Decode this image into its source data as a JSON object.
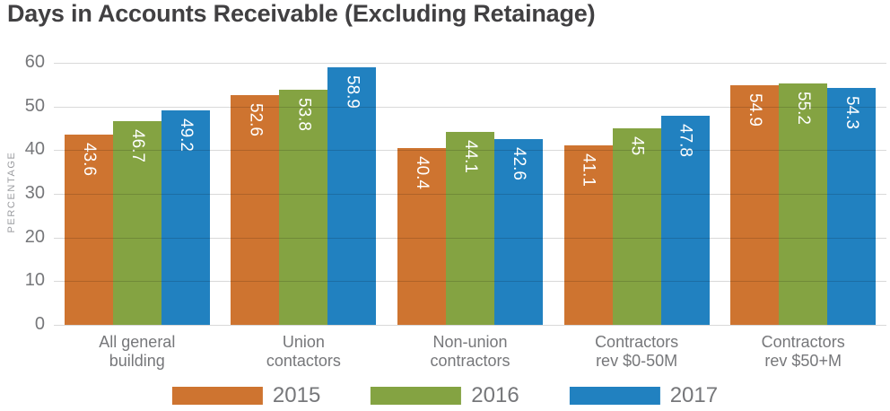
{
  "title": "Days in Accounts Receivable (Excluding Retainage)",
  "chart_data": {
    "type": "bar",
    "title": "Days in Accounts Receivable (Excluding Retainage)",
    "xlabel": "",
    "ylabel": "PERCENTAGE",
    "ylim": [
      0,
      60
    ],
    "yticks": [
      0,
      10,
      20,
      30,
      40,
      50,
      60
    ],
    "grid": true,
    "grid_color": "#D9D9D9",
    "legend_position": "bottom",
    "value_labels": "inside-top, rotated 90deg, white",
    "categories": [
      [
        "All general",
        "building"
      ],
      [
        "Union",
        "contactors"
      ],
      [
        "Non-union",
        "contractors"
      ],
      [
        "Contractors",
        "rev $0-50M"
      ],
      [
        "Contractors",
        "rev $50+M"
      ]
    ],
    "series": [
      {
        "name": "2015",
        "color": "#CE7430",
        "values": [
          43.6,
          52.6,
          40.4,
          41.1,
          54.9
        ]
      },
      {
        "name": "2016",
        "color": "#84A342",
        "values": [
          46.7,
          53.8,
          44.1,
          45,
          55.2
        ]
      },
      {
        "name": "2017",
        "color": "#2181C0",
        "values": [
          49.2,
          58.9,
          42.6,
          47.8,
          54.3
        ]
      }
    ]
  },
  "colors": {
    "title_text": "#414042",
    "axis_text": "#76777A",
    "y_axis_caption_text": "#9B9CA0",
    "background": "#FFFFFF"
  }
}
